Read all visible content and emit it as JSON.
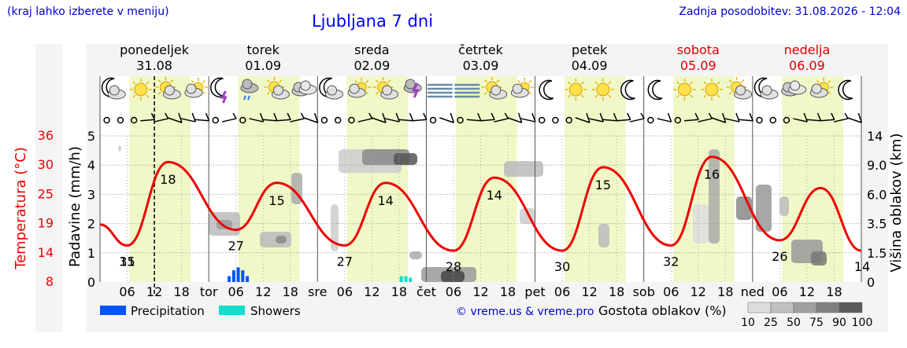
{
  "header": {
    "note": "(kraj lahko izberete v meniju)",
    "title": "Ljubljana 7 dni",
    "last_update": "Zadnja posodobitev: 31.08.2026 - 12:04"
  },
  "days": [
    {
      "name": "ponedeljek",
      "date": "31.08",
      "abbr": "",
      "weekend": false
    },
    {
      "name": "torek",
      "date": "01.09",
      "abbr": "tor",
      "weekend": false
    },
    {
      "name": "sreda",
      "date": "02.09",
      "abbr": "sre",
      "weekend": false
    },
    {
      "name": "četrtek",
      "date": "03.09",
      "abbr": "čet",
      "weekend": false
    },
    {
      "name": "petek",
      "date": "04.09",
      "abbr": "pet",
      "weekend": false
    },
    {
      "name": "sobota",
      "date": "05.09",
      "abbr": "sob",
      "weekend": true
    },
    {
      "name": "nedelja",
      "date": "06.09",
      "abbr": "ned",
      "weekend": true
    }
  ],
  "hour_ticks": [
    "06",
    "12",
    "18"
  ],
  "icons": [
    {
      "day": 0,
      "items": [
        "moon-cloud-icon",
        "sun-icon",
        "sun-cloud-icon",
        "cloud-sun-icon"
      ]
    },
    {
      "day": 1,
      "items": [
        "moon-storm-icon",
        "cloud-rain-icon",
        "sun-cloud-icon",
        "cloud-icon"
      ]
    },
    {
      "day": 2,
      "items": [
        "moon-cloud-icon",
        "cloud-sun-icon",
        "sun-cloud-icon",
        "storm-icon"
      ]
    },
    {
      "day": 3,
      "items": [
        "fog-icon",
        "fog-icon",
        "sun-cloud-icon",
        "cloud-sun-icon"
      ]
    },
    {
      "day": 4,
      "items": [
        "moon-icon",
        "sun-icon",
        "sun-icon",
        "moon-icon"
      ]
    },
    {
      "day": 5,
      "items": [
        "moon-icon",
        "sun-icon",
        "sun-icon",
        "sun-cloud-icon"
      ]
    },
    {
      "day": 6,
      "items": [
        "moon-cloud-icon",
        "cloud-icon",
        "cloud-sun-icon",
        "moon-icon"
      ]
    }
  ],
  "legend": {
    "precipitation": "Precipitation",
    "showers": "Showers",
    "credit": "© vreme.us & vreme.pro",
    "cloud_density_title": "Gostota oblakov (%)",
    "cloud_density_steps": [
      "10",
      "25",
      "50",
      "75",
      "90",
      "100"
    ]
  },
  "colors": {
    "temperature": "#ee0000",
    "precipitation": "#0055ff",
    "showers": "#11ddcc",
    "daylight": "#f0f8c8",
    "title": "#0000ff"
  },
  "chart_data": {
    "type": "line",
    "title": "Ljubljana 7 dni",
    "x_start": "31.08.2026 00:00",
    "x_end": "07.09.2026 00:00",
    "now_marker": "31.08.2026 12:00",
    "temperature": {
      "label": "Temperatura (°C)",
      "ticks": [
        "8",
        "14",
        "19",
        "25",
        "30",
        "36"
      ],
      "ylim": [
        8,
        36
      ],
      "points": [
        {
          "t": "31.08 00:00",
          "v": 19
        },
        {
          "t": "31.08 06:00",
          "v": 15
        },
        {
          "t": "31.08 15:00",
          "v": 31
        },
        {
          "t": "01.09 06:00",
          "v": 18
        },
        {
          "t": "01.09 15:00",
          "v": 27
        },
        {
          "t": "02.09 06:00",
          "v": 15
        },
        {
          "t": "02.09 15:00",
          "v": 27
        },
        {
          "t": "03.09 06:00",
          "v": 14
        },
        {
          "t": "03.09 15:00",
          "v": 28
        },
        {
          "t": "04.09 06:00",
          "v": 14
        },
        {
          "t": "04.09 15:00",
          "v": 30
        },
        {
          "t": "05.09 06:00",
          "v": 15
        },
        {
          "t": "05.09 15:00",
          "v": 32
        },
        {
          "t": "06.09 06:00",
          "v": 16
        },
        {
          "t": "06.09 15:00",
          "v": 26
        },
        {
          "t": "07.09 00:00",
          "v": 14
        }
      ],
      "extreme_labels": [
        "15",
        "31",
        "18",
        "27",
        "15",
        "27",
        "14",
        "28",
        "14",
        "30",
        "15",
        "32",
        "16",
        "26",
        "14"
      ]
    },
    "precipitation": {
      "label": "Padavine (mm/h)",
      "ticks": [
        "0",
        "1",
        "2",
        "3",
        "4",
        "5"
      ],
      "ylim": [
        0,
        5
      ],
      "precip_bars": [
        {
          "t": "01.09 04:30",
          "v": 0.2
        },
        {
          "t": "01.09 05:30",
          "v": 0.4
        },
        {
          "t": "01.09 06:30",
          "v": 0.5
        },
        {
          "t": "01.09 07:30",
          "v": 0.4
        },
        {
          "t": "01.09 08:30",
          "v": 0.2
        }
      ],
      "shower_bars": [
        {
          "t": "02.09 18:30",
          "v": 0.2
        },
        {
          "t": "02.09 19:30",
          "v": 0.2
        },
        {
          "t": "02.09 20:30",
          "v": 0.15
        }
      ]
    },
    "cloud_height": {
      "label": "Višina oblakov (km)",
      "ticks": [
        "0",
        "1.5",
        "3.5",
        "6.0",
        "9.0",
        "14"
      ]
    }
  }
}
